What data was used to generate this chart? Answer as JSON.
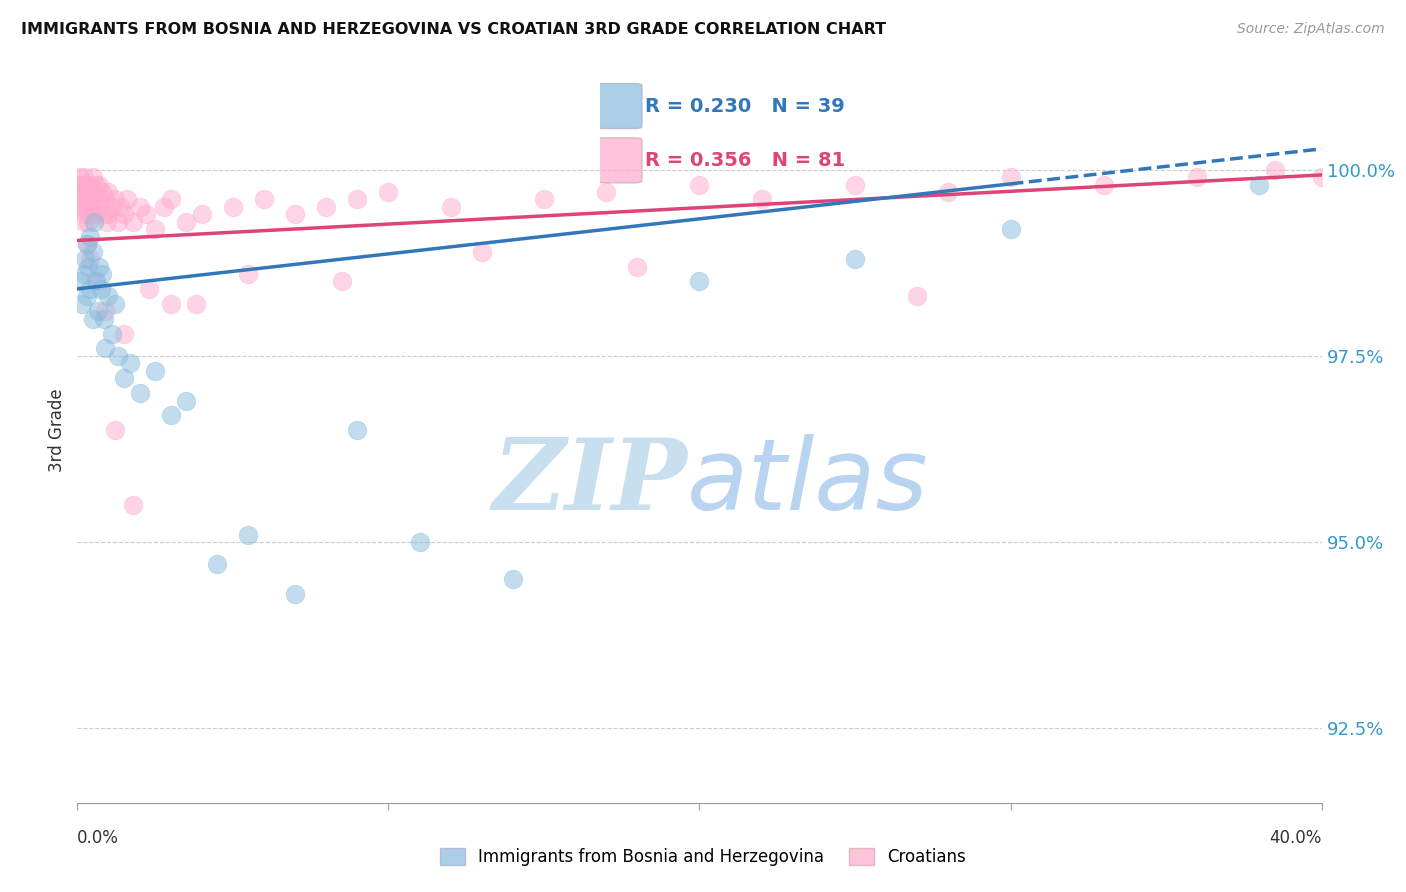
{
  "title": "IMMIGRANTS FROM BOSNIA AND HERZEGOVINA VS CROATIAN 3RD GRADE CORRELATION CHART",
  "source": "Source: ZipAtlas.com",
  "ylabel": "3rd Grade",
  "y_ticks": [
    92.5,
    95.0,
    97.5,
    100.0
  ],
  "y_tick_labels": [
    "92.5%",
    "95.0%",
    "97.5%",
    "100.0%"
  ],
  "xlim": [
    0.0,
    40.0
  ],
  "ylim": [
    91.5,
    101.5
  ],
  "blue_label": "Immigrants from Bosnia and Herzegovina",
  "pink_label": "Croatians",
  "blue_R": 0.23,
  "blue_N": 39,
  "pink_R": 0.356,
  "pink_N": 81,
  "blue_color": "#88bbdd",
  "pink_color": "#ffaacc",
  "blue_line_color": "#3377bb",
  "pink_line_color": "#dd4477",
  "background_color": "#ffffff",
  "watermark_zip_color": "#c8dff0",
  "watermark_atlas_color": "#b8d4f0",
  "blue_points_x": [
    0.1,
    0.15,
    0.2,
    0.25,
    0.3,
    0.3,
    0.35,
    0.4,
    0.4,
    0.5,
    0.5,
    0.55,
    0.6,
    0.65,
    0.7,
    0.75,
    0.8,
    0.85,
    0.9,
    1.0,
    1.1,
    1.2,
    1.3,
    1.5,
    1.7,
    2.0,
    2.5,
    3.0,
    3.5,
    4.5,
    5.5,
    7.0,
    9.0,
    11.0,
    14.0,
    20.0,
    25.0,
    30.0,
    38.0
  ],
  "blue_points_y": [
    98.5,
    98.2,
    98.6,
    98.8,
    99.0,
    98.3,
    98.7,
    99.1,
    98.4,
    98.9,
    98.0,
    99.3,
    98.5,
    98.1,
    98.7,
    98.4,
    98.6,
    98.0,
    97.6,
    98.3,
    97.8,
    98.2,
    97.5,
    97.2,
    97.4,
    97.0,
    97.3,
    96.7,
    96.9,
    94.7,
    95.1,
    94.3,
    96.5,
    95.0,
    94.5,
    98.5,
    98.8,
    99.2,
    99.8
  ],
  "pink_points_x": [
    0.05,
    0.1,
    0.1,
    0.15,
    0.15,
    0.2,
    0.2,
    0.25,
    0.25,
    0.3,
    0.3,
    0.35,
    0.35,
    0.4,
    0.4,
    0.45,
    0.5,
    0.5,
    0.55,
    0.6,
    0.6,
    0.65,
    0.7,
    0.75,
    0.8,
    0.85,
    0.9,
    0.95,
    1.0,
    1.0,
    1.1,
    1.2,
    1.3,
    1.4,
    1.5,
    1.6,
    1.8,
    2.0,
    2.2,
    2.5,
    2.8,
    3.0,
    3.5,
    4.0,
    5.0,
    6.0,
    7.0,
    8.0,
    9.0,
    10.0,
    12.0,
    15.0,
    17.0,
    20.0,
    22.0,
    25.0,
    28.0,
    30.0,
    33.0,
    36.0,
    38.5,
    40.0,
    27.0,
    18.0,
    13.0,
    8.5,
    5.5,
    3.8,
    2.3,
    1.5,
    0.9,
    0.6,
    0.4,
    0.3,
    0.2,
    0.15,
    0.1,
    0.05,
    1.2,
    1.8,
    3.0
  ],
  "pink_points_y": [
    99.8,
    99.9,
    99.7,
    99.8,
    99.5,
    99.9,
    99.6,
    99.7,
    99.4,
    99.8,
    99.5,
    99.7,
    99.3,
    99.8,
    99.4,
    99.6,
    99.9,
    99.5,
    99.7,
    99.8,
    99.4,
    99.6,
    99.8,
    99.5,
    99.7,
    99.4,
    99.6,
    99.3,
    99.7,
    99.4,
    99.5,
    99.6,
    99.3,
    99.5,
    99.4,
    99.6,
    99.3,
    99.5,
    99.4,
    99.2,
    99.5,
    99.6,
    99.3,
    99.4,
    99.5,
    99.6,
    99.4,
    99.5,
    99.6,
    99.7,
    99.5,
    99.6,
    99.7,
    99.8,
    99.6,
    99.8,
    99.7,
    99.9,
    99.8,
    99.9,
    100.0,
    99.9,
    98.3,
    98.7,
    98.9,
    98.5,
    98.6,
    98.2,
    98.4,
    97.8,
    98.1,
    98.5,
    98.8,
    99.0,
    99.3,
    99.5,
    99.6,
    99.8,
    96.5,
    95.5,
    98.2
  ]
}
